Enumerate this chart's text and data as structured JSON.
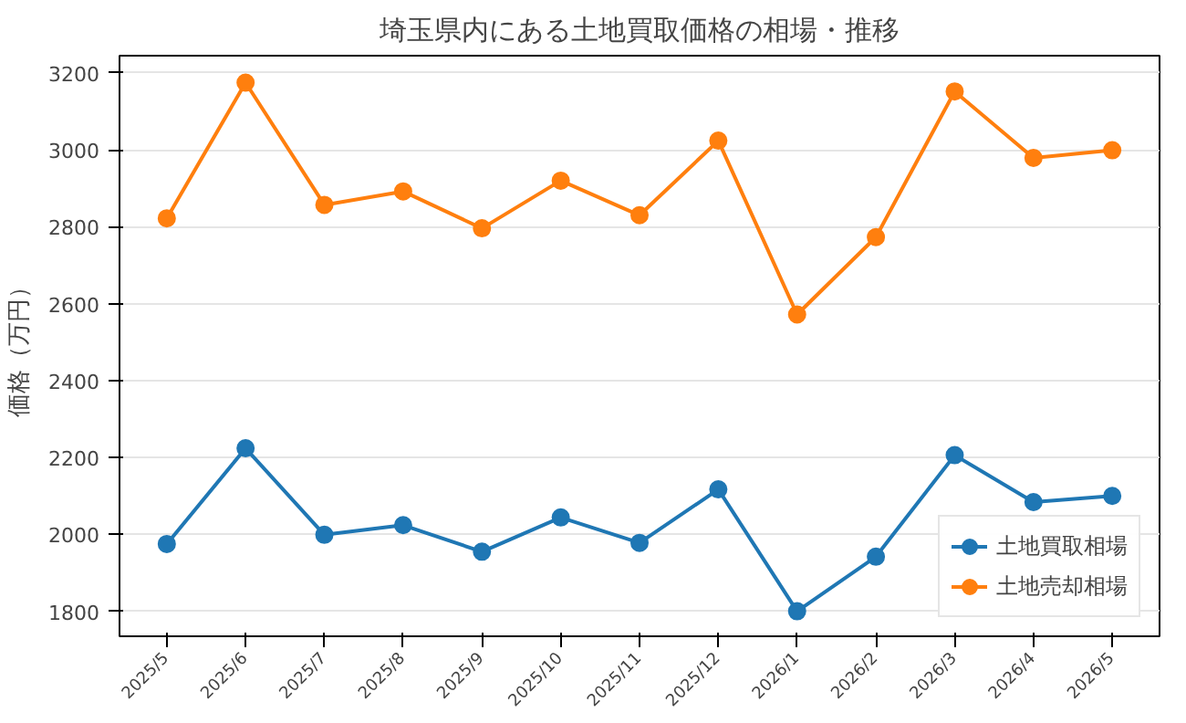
{
  "chart_data": {
    "type": "line",
    "title": "埼玉県内にある土地買取価格の相場・推移",
    "ylabel": "価格（万円）",
    "categories": [
      "2025/5",
      "2025/6",
      "2025/7",
      "2025/8",
      "2025/9",
      "2025/10",
      "2025/11",
      "2025/12",
      "2026/1",
      "2026/2",
      "2026/3",
      "2026/4",
      "2026/5"
    ],
    "series": [
      {
        "name": "土地買取相場",
        "color": "#1f77b4",
        "values": [
          1975,
          2224,
          1999,
          2024,
          1955,
          2044,
          1978,
          2117,
          1800,
          1942,
          2206,
          2084,
          2100
        ]
      },
      {
        "name": "土地売却相場",
        "color": "#ff7f0e",
        "values": [
          2822,
          3175,
          2857,
          2892,
          2796,
          2920,
          2830,
          3024,
          2572,
          2773,
          3152,
          2979,
          2999
        ]
      }
    ],
    "ylim": [
      1735,
      3245
    ],
    "yticks": [
      1800,
      2000,
      2200,
      2400,
      2600,
      2800,
      3000,
      3200
    ],
    "grid": "y",
    "legend": "bottom right",
    "marker": "circle",
    "line_style": "solid"
  }
}
